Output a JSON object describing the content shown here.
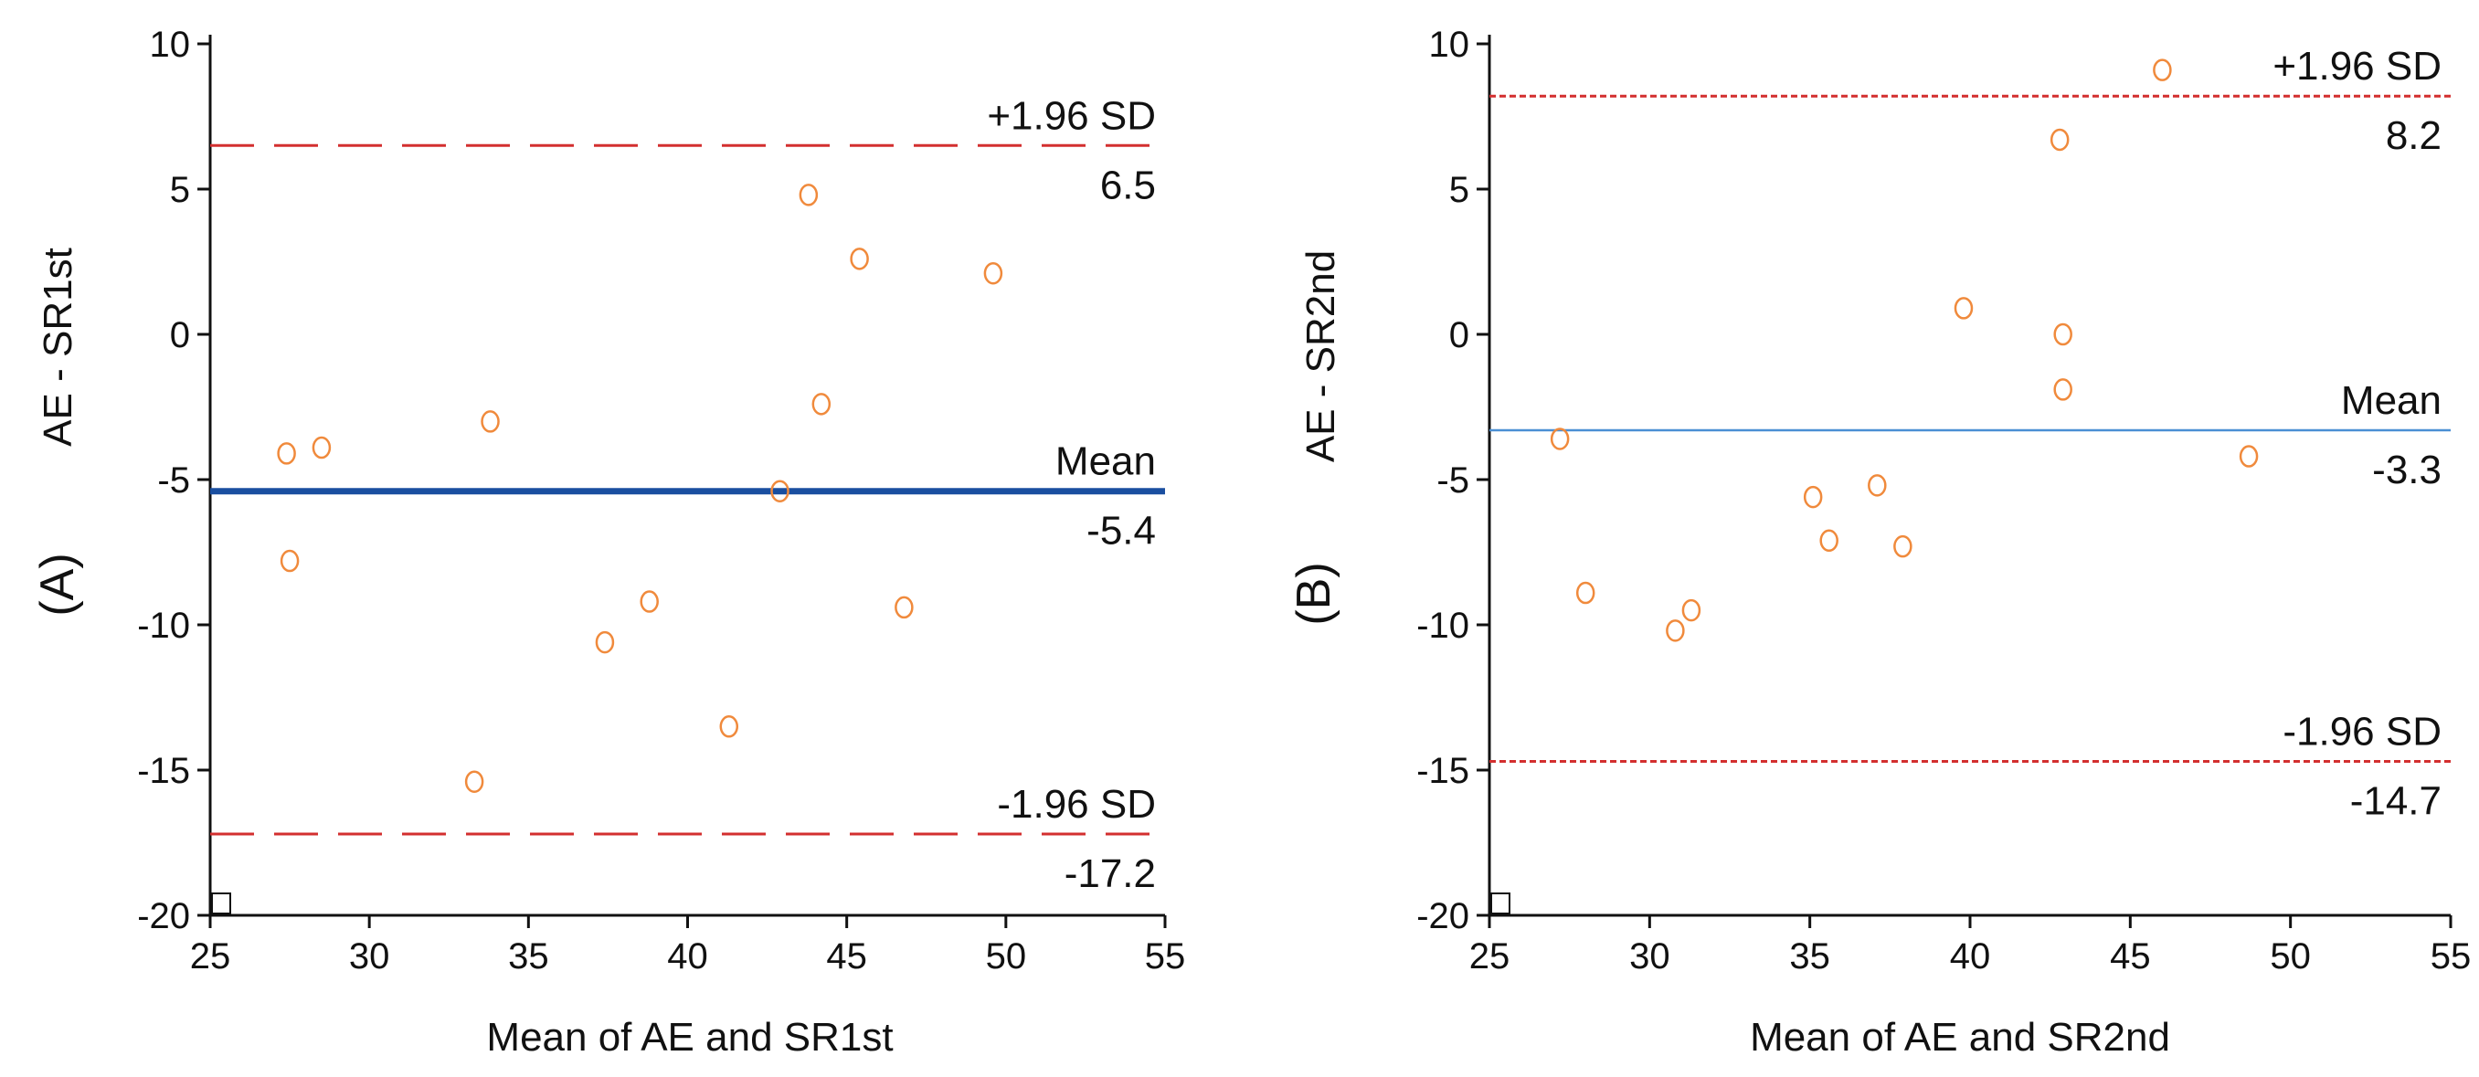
{
  "chart_data": [
    {
      "type": "scatter",
      "panel_label": "(A)",
      "ylabel": "AE - SR1st",
      "xlabel": "Mean of AE and SR1st",
      "xlim": [
        25,
        55
      ],
      "ylim": [
        -20,
        10
      ],
      "x_ticks": [
        25,
        30,
        35,
        40,
        45,
        50,
        55
      ],
      "y_ticks": [
        10,
        5,
        0,
        -5,
        -10,
        -15,
        -20
      ],
      "reference_lines": [
        {
          "name": "upper-loa",
          "label": "+1.96 SD",
          "value_label": "6.5",
          "y": 6.5,
          "style": "dashed",
          "color": "#d32f2f"
        },
        {
          "name": "mean",
          "label": "Mean",
          "value_label": "-5.4",
          "y": -5.4,
          "style": "solid-thick",
          "color": "#1a4fa0"
        },
        {
          "name": "lower-loa",
          "label": "-1.96 SD",
          "value_label": "-17.2",
          "y": -17.2,
          "style": "dashed",
          "color": "#d32f2f"
        }
      ],
      "points": [
        {
          "x": 27.4,
          "y": -4.1
        },
        {
          "x": 28.5,
          "y": -3.9
        },
        {
          "x": 27.5,
          "y": -7.8
        },
        {
          "x": 33.3,
          "y": -15.4
        },
        {
          "x": 33.8,
          "y": -3.0
        },
        {
          "x": 37.4,
          "y": -10.6
        },
        {
          "x": 38.8,
          "y": -9.2
        },
        {
          "x": 41.3,
          "y": -13.5
        },
        {
          "x": 42.9,
          "y": -5.4
        },
        {
          "x": 43.8,
          "y": 4.8
        },
        {
          "x": 44.2,
          "y": -2.4
        },
        {
          "x": 45.4,
          "y": 2.6
        },
        {
          "x": 46.8,
          "y": -9.4
        },
        {
          "x": 49.6,
          "y": 2.1
        }
      ],
      "point_color": "#f08a3c"
    },
    {
      "type": "scatter",
      "panel_label": "(B)",
      "ylabel": "AE - SR2nd",
      "xlabel": "Mean of AE and SR2nd",
      "xlim": [
        25,
        55
      ],
      "ylim": [
        -20,
        10
      ],
      "x_ticks": [
        25,
        30,
        35,
        40,
        45,
        50,
        55
      ],
      "y_ticks": [
        10,
        5,
        0,
        -5,
        -10,
        -15,
        -20
      ],
      "reference_lines": [
        {
          "name": "upper-loa",
          "label": "+1.96 SD",
          "value_label": "8.2",
          "y": 8.2,
          "style": "dotted",
          "color": "#d32f2f"
        },
        {
          "name": "mean",
          "label": "Mean",
          "value_label": "-3.3",
          "y": -3.3,
          "style": "solid-thin",
          "color": "#4a8fd4"
        },
        {
          "name": "lower-loa",
          "label": "-1.96 SD",
          "value_label": "-14.7",
          "y": -14.7,
          "style": "dotted",
          "color": "#d32f2f"
        }
      ],
      "points": [
        {
          "x": 27.2,
          "y": -3.6
        },
        {
          "x": 28.0,
          "y": -8.9
        },
        {
          "x": 30.8,
          "y": -10.2
        },
        {
          "x": 31.3,
          "y": -9.5
        },
        {
          "x": 35.1,
          "y": -5.6
        },
        {
          "x": 35.6,
          "y": -7.1
        },
        {
          "x": 37.1,
          "y": -5.2
        },
        {
          "x": 37.9,
          "y": -7.3
        },
        {
          "x": 39.8,
          "y": 0.9
        },
        {
          "x": 42.8,
          "y": 6.7
        },
        {
          "x": 42.9,
          "y": 0.0
        },
        {
          "x": 42.9,
          "y": -1.9
        },
        {
          "x": 46.0,
          "y": 9.1
        },
        {
          "x": 48.7,
          "y": -4.2
        }
      ],
      "point_color": "#f08a3c"
    }
  ]
}
